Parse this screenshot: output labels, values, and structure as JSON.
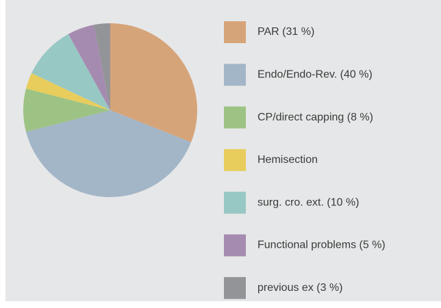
{
  "chart_data": {
    "type": "pie",
    "categories": [
      "PAR (31 %)",
      "Endo/Endo-Rev. (40 %)",
      "CP/direct capping (8 %)",
      "Hemisection",
      "surg. cro. ext. (10 %)",
      "Functional problems (5 %)",
      "previous ex (3 %)"
    ],
    "values": [
      31,
      40,
      8,
      3,
      10,
      5,
      3
    ],
    "colors": [
      "#d6a479",
      "#a3b6c8",
      "#9dc384",
      "#e8cd5c",
      "#98c8c4",
      "#a68bb0",
      "#939497"
    ],
    "legend": "right"
  }
}
